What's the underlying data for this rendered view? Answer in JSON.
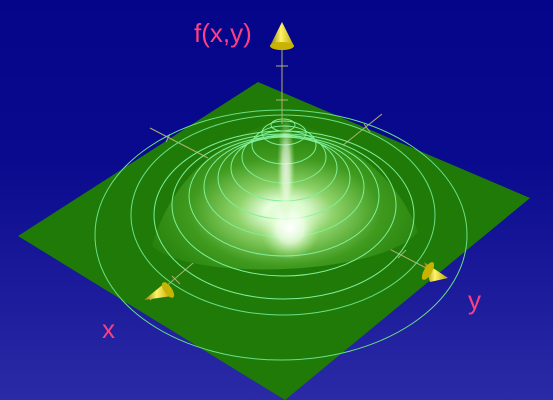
{
  "labels": {
    "vertical_axis": "f(x,y)",
    "x_axis": "x",
    "y_axis": "y"
  },
  "colors": {
    "background_top": "#05058a",
    "background_bottom": "#2b2aa6",
    "plane": "#1f7a08",
    "contour": "#68e088",
    "axis_label": "#ff3f7f",
    "arrowhead": "#f2e21a",
    "highlight": "#ffffff"
  }
}
